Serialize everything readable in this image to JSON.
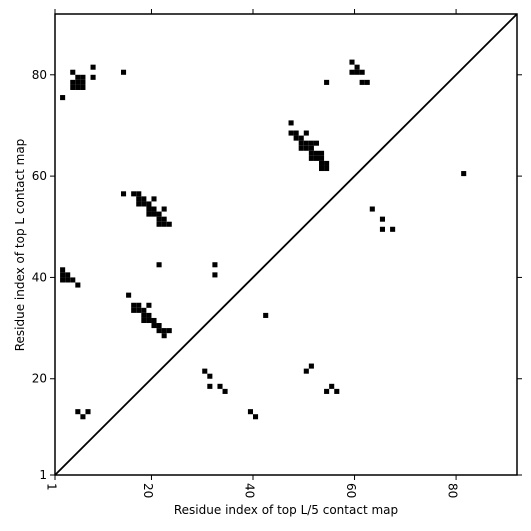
{
  "chart_data": {
    "type": "scatter",
    "marker": "square",
    "color": "#000000",
    "xlabel": "Residue index of top L/5 contact map",
    "ylabel": "Residue index of top L contact map",
    "xlim": [
      1,
      92
    ],
    "ylim": [
      1,
      92
    ],
    "xticks": [
      1,
      20,
      40,
      60,
      80
    ],
    "yticks": [
      1,
      20,
      40,
      60,
      80
    ],
    "x": [
      4,
      5,
      4,
      5,
      6,
      4,
      5,
      6,
      6,
      8,
      8,
      14,
      2,
      2,
      2,
      3,
      2,
      3,
      4,
      5,
      5,
      6,
      7,
      14,
      16,
      17,
      17,
      18,
      17,
      18,
      19,
      19,
      20,
      19,
      20,
      21,
      20,
      21,
      22,
      21,
      22,
      23,
      22,
      21,
      15,
      16,
      17,
      16,
      17,
      18,
      18,
      19,
      18,
      19,
      20,
      19,
      20,
      21,
      21,
      22,
      23,
      22,
      30,
      31,
      31,
      33,
      34,
      32,
      32,
      42,
      39,
      40,
      47,
      47,
      48,
      48,
      49,
      50,
      49,
      50,
      51,
      49,
      50,
      51,
      52,
      51,
      52,
      53,
      51,
      52,
      53,
      53,
      54,
      53,
      54,
      54,
      59,
      59,
      60,
      61,
      60,
      61,
      62,
      63,
      65,
      65,
      67,
      81,
      50,
      51,
      54,
      55,
      56
    ],
    "values": [
      80,
      79,
      78,
      78,
      78,
      77,
      77,
      77,
      79,
      81,
      79,
      80,
      75,
      41,
      40,
      40,
      39,
      39,
      39,
      38,
      13,
      12,
      13,
      56,
      56,
      56,
      55,
      55,
      54,
      54,
      54,
      53,
      53,
      52,
      52,
      52,
      55,
      51,
      51,
      50,
      50,
      50,
      53,
      42,
      36,
      34,
      34,
      33,
      33,
      33,
      32,
      32,
      31,
      31,
      31,
      34,
      30,
      30,
      29,
      29,
      29,
      28,
      21,
      20,
      18,
      18,
      17,
      42,
      40,
      32,
      13,
      12,
      70,
      68,
      68,
      67,
      67,
      68,
      66,
      66,
      66,
      65,
      65,
      65,
      66,
      64,
      64,
      64,
      63,
      63,
      63,
      62,
      62,
      61,
      61,
      78,
      82,
      80,
      80,
      80,
      81,
      78,
      78,
      53,
      51,
      49,
      49,
      60,
      21,
      22,
      17,
      18,
      17
    ]
  }
}
